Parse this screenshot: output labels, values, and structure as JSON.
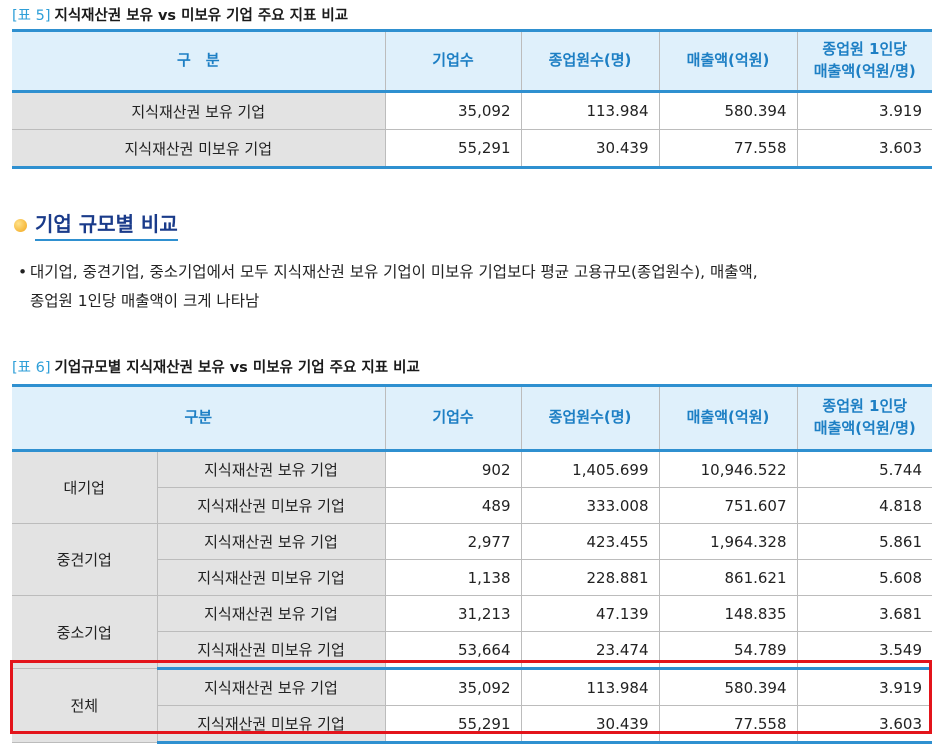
{
  "table5": {
    "tag": "[표 5]",
    "title": "지식재산권 보유 vs 미보유 기업 주요 지표 비교",
    "headers": [
      "구　분",
      "기업수",
      "종업원수(명)",
      "매출액(억원)",
      "종업원 1인당",
      "매출액(억원/명)"
    ],
    "rows": [
      {
        "label": "지식재산권 보유 기업",
        "firms": "35,092",
        "employees": "113.984",
        "sales": "580.394",
        "per_employee": "3.919"
      },
      {
        "label": "지식재산권 미보유 기업",
        "firms": "55,291",
        "employees": "30.439",
        "sales": "77.558",
        "per_employee": "3.603"
      }
    ]
  },
  "section": {
    "title": "기업 규모별 비교",
    "bullet": "•",
    "line1": "대기업, 중견기업, 중소기업에서 모두 지식재산권 보유 기업이 미보유 기업보다 평균 고용규모(종업원수), 매출액,",
    "line2": "종업원 1인당 매출액이 크게 나타남"
  },
  "table6": {
    "tag": "[표 6]",
    "title": "기업규모별 지식재산권 보유 vs 미보유 기업 주요 지표 비교",
    "headers": [
      "구분",
      "기업수",
      "종업원수(명)",
      "매출액(억원)",
      "종업원 1인당",
      "매출액(억원/명)"
    ],
    "groups": [
      {
        "name": "대기업",
        "rows": [
          {
            "label": "지식재산권 보유 기업",
            "firms": "902",
            "employees": "1,405.699",
            "sales": "10,946.522",
            "per_employee": "5.744"
          },
          {
            "label": "지식재산권 미보유 기업",
            "firms": "489",
            "employees": "333.008",
            "sales": "751.607",
            "per_employee": "4.818"
          }
        ]
      },
      {
        "name": "중견기업",
        "rows": [
          {
            "label": "지식재산권 보유 기업",
            "firms": "2,977",
            "employees": "423.455",
            "sales": "1,964.328",
            "per_employee": "5.861"
          },
          {
            "label": "지식재산권 미보유 기업",
            "firms": "1,138",
            "employees": "228.881",
            "sales": "861.621",
            "per_employee": "5.608"
          }
        ]
      },
      {
        "name": "중소기업",
        "rows": [
          {
            "label": "지식재산권 보유 기업",
            "firms": "31,213",
            "employees": "47.139",
            "sales": "148.835",
            "per_employee": "3.681"
          },
          {
            "label": "지식재산권 미보유 기업",
            "firms": "53,664",
            "employees": "23.474",
            "sales": "54.789",
            "per_employee": "3.549"
          }
        ]
      },
      {
        "name": "전체",
        "rows": [
          {
            "label": "지식재산권 보유 기업",
            "firms": "35,092",
            "employees": "113.984",
            "sales": "580.394",
            "per_employee": "3.919"
          },
          {
            "label": "지식재산권 미보유 기업",
            "firms": "55,291",
            "employees": "30.439",
            "sales": "77.558",
            "per_employee": "3.603"
          }
        ]
      }
    ]
  },
  "colors": {
    "header_text": "#1d7fc4",
    "header_bg": "#dff0fb",
    "rule": "#2f90d0",
    "label_bg": "#e3e3e3",
    "highlight": "#e3141b"
  }
}
